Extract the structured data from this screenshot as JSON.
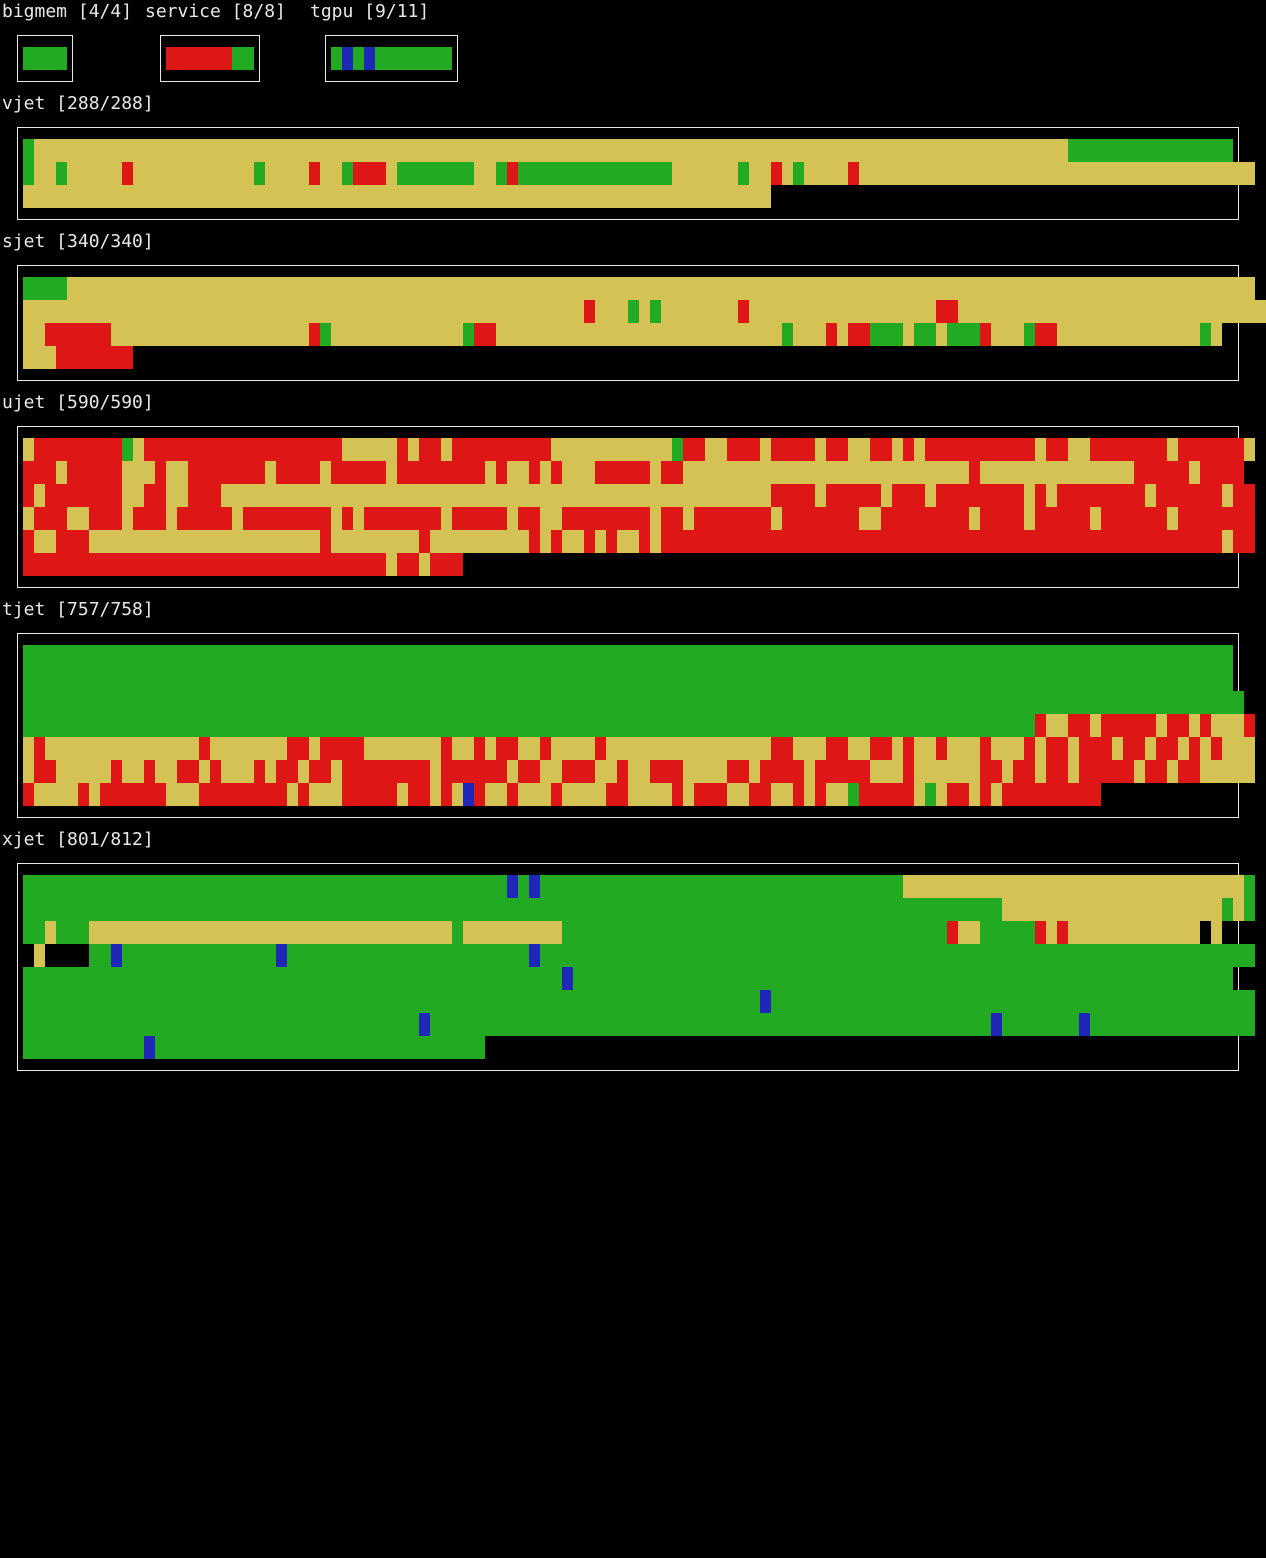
{
  "colors": {
    "G": "#22ab22",
    "R": "#de1616",
    "Y": "#d4c255",
    "B": "#1f27b9",
    "K": "#000000"
  },
  "partitions": [
    {
      "id": "bigmem",
      "title": "bigmem [4/4]",
      "rows": [
        "GGGG"
      ]
    },
    {
      "id": "service",
      "title": "service [8/8]",
      "rows": [
        "RRRRRRGG"
      ]
    },
    {
      "id": "tgpu",
      "title": "tgpu [9/11]",
      "rows": [
        "GBGBGGGGGGG"
      ]
    },
    {
      "id": "vjet",
      "title": "vjet [288/288]",
      "rows": [
        "GYYYYYYYYYYYYYYYYYYYYYYYYYYYYYYYYYYYYYYYYYYYYYYYYYYYYYYYYYYYYYYYYYYYYYYYYYYYYYYYYYYYYYYYYYYYYYYGGGGGGGGGGGGGGG",
        "GYYGYYYYYRYYYYYYYYYYYGYYYYRYYGRRRYGGGGGGGYYGRGGGGGGGGGGGGGGYYYYYYGYYRYGYYYYRYYYYYYYYYYYYYYYYYYYYYYYYYYYYYYYYYYYY",
        "YYYYYYYYYYYYYYYYYYYYYYYYYYYYYYYYYYYYYYYYYYYYYYYYYYYYYYYYYYYYYYYYYYYY"
      ]
    },
    {
      "id": "sjet",
      "title": "sjet [340/340]",
      "rows": [
        "GGGGYYYYYYYYYYYYYYYYYYYYYYYYYYYYYYYYYYYYYYYYYYYYYYYYYYYYYYYYYYYYYYYYYYYYYYYYYYYYYYYYYYYYYYYYYYYYYYYYYYYYYYYYYYYY",
        "YYYYYYYYYYYYYYYYYYYYYYYYYYYYYYYYYYYYYYYYYYYYYYYYYYYRYYYGYGYYYYYYYRYYYYYYYYYYYYYYYYYRRYYYYYYYYYYYYYYYYYYYYYYYYYYYY",
        "YYRRRRRRYYYYYYYYYYYYYYYYYYRGYYYYYYYYYYYYGRRYYYYYYYYYYYYYYYYYYYYYYYYYYGYYYRYRRGGGYGGYGGGRYYYGRRYYYYYYYYYYYYYGY",
        "YYYRRRRRRR"
      ]
    },
    {
      "id": "ujet",
      "title": "ujet [590/590]",
      "rows": [
        "YRRRRRRRRGYRRRRRRRRRRRRRRRRRRYYYYYRYRRYRRRRRRRRRYYYYYYYYYYYGRRYYRRRYRRRRYRRYYRRYRYRRRRRRRRRRYRRYYRRRRRRRYRRRRRRY",
        "RRRYRRRRRYYYRYYRRRRRRRYRRRRYRRRRRYRRRRRRRRYRYYRYRYYYRRRRRYRRYYYYYYYYYYYYYYYYYYYYYYYYYYRYYYYYYYYYYYYYYRRRRRYRRRR",
        "RYRRRRRRRYYRRYYRRRYYYYYYYYYYYYYYYYYYYYYYYYYYYYYYYYYYYYYYYYYYYYYYYYYYRRRRYRRRRRYRRRYRRRRRRRRYRYRRRRRRRRYRRRRRRYRR",
        "YRRRYYRRRYRRRYRRRRRYRRRRRRRRYRYRRRRRRRYRRRRRYRRYYRRRRRRRRYRRYRRRRRRRYRRRRRRRYYRRRRRRRRYRRRRYRRRRRYRRRRRRYRRRRRRR",
        "RYYRRRYYYYYYYYYYYYYYYYYYYYYRYYYYYYYYRYYYYYYYYYRYRYYRYRYYRYRRRRRRRRRRRRRRRRRRRRRRRRRRRRRRRRRRRRRRRRRRRRRRRRRRRYRR",
        "RRRRRRRRRRRRRRRRRRRRRRRRRRRRRRRRRYRRYRRR"
      ]
    },
    {
      "id": "tjet",
      "title": "tjet [757/758]",
      "rows": [
        "GGGGGGGGGGGGGGGGGGGGGGGGGGGGGGGGGGGGGGGGGGGGGGGGGGGGGGGGGGGGGGGGGGGGGGGGGGGGGGGGGGGGGGGGGGGGGGGGGGGGGGGGGGGGGG",
        "GGGGGGGGGGGGGGGGGGGGGGGGGGGGGGGGGGGGGGGGGGGGGGGGGGGGGGGGGGGGGGGGGGGGGGGGGGGGGGGGGGGGGGGGGGGGGGGGGGGGGGGGGGGGGG",
        "GGGGGGGGGGGGGGGGGGGGGGGGGGGGGGGGGGGGGGGGGGGGGGGGGGGGGGGGGGGGGGGGGGGGGGGGGGGGGGGGGGGGGGGGGGGGGGGGGGGGGGGGGGGGGGG",
        "GGGGGGGGGGGGGGGGGGGGGGGGGGGGGGGGGGGGGGGGGGGGGGGGGGGGGGGGGGGGGGGGGGGGGGGGGGGGGGGGGGGGGGGGGGGGRYYRRYRRRRRYRRYRYYYR",
        "YRYYYYYYYYYYYYYYRYYYYYYYRRYRRRRYYYYYYYRYYRYRRYYRYYYYRYYYYYYYYYYYYYYYRRYYYRRYYRRYRYYRYYYRYYYRYRRYRRRYRRYRRYRYRYYY",
        "YRRYYYYYRYYRYYRRYRYYYRYRRYRRYRRRRRRRRYRRRRRRYRRYYRRRYYRYYRRRYYYYRRYRRRRYRRRRRYYYRYYYYYYRRYRRYRRYRRRRRYRRYRRYYYYY",
        "RYYYYRYRRRRRRYYYRRRRRRRRYRYYYRRRRRYRRYRYBRYYRYYYRYYYYRRYYYYRYRRRYYRRYYRYRYYGRRRRRYGYRRYRYRRRRRRRRR"
      ]
    },
    {
      "id": "xjet",
      "title": "xjet [801/812]",
      "rows": [
        "GGGGGGGGGGGGGGGGGGGGGGGGGGGGGGGGGGGGGGGGGGGGBGBGGGGGGGGGGGGGGGGGGGGGGGGGGGGGGGGGYYYYYYYYYYYYYYYYYYYYYYYYYYYYYYYG",
        "GGGGGGGGGGGGGGGGGGGGGGGGGGGGGGGGGGGGGGGGGGGGGGGGGGGGGGGGGGGGGGGGGGGGGGGGGGGGGGGGGGGGGGGGGYYYYYYYYYYYYYYYYYYYYGYG",
        "GGYGGGYYYYYYYYYYYYYYYYYYYYYYYYYYYYYYYYYGYYYYYYYYYGGGGGGGGGGGGGGGGGGGGGGGGGGGGGGGGGGGRYYGGGGGRYRYYYYYYYYYYYYKY",
        "KYKKKKGGBGGGGGGGGGGGGGGBGGGGGGGGGGGGGGGGGGGGGGBGGGGGGGGGGGGGGGGGGGGGGGGGGGGGGGGGGGGGGGGGGGGGGGGGGGGGGGGGGGGGGGGG",
        "GGGGGGGGGGGGGGGGGGGGGGGGGGGGGGGGGGGGGGGGGGGGGGGGGBGGGGGGGGGGGGGGGGGGGGGGGGGGGGGGGGGGGGGGGGGGGGGGGGGGGGGGGGGGGG",
        "GGGGGGGGGGGGGGGGGGGGGGGGGGGGGGGGGGGGGGGGGGGGGGGGGGGGGGGGGGGGGGGGGGGBGGGGGGGGGGGGGGGGGGGGGGGGGGGGGGGGGGGGGGGGGGGG",
        "GGGGGGGGGGGGGGGGGGGGGGGGGGGGGGGGGGGGBGGGGGGGGGGGGGGGGGGGGGGGGGGGGGGGGGGGGGGGGGGGGGGGGGGGBGGGGGGGBGGGGGGGGGGGGGGG",
        "GGGGGGGGGGGBGGGGGGGGGGGGGGGGGGGGGGGGGGGGGG"
      ]
    }
  ]
}
